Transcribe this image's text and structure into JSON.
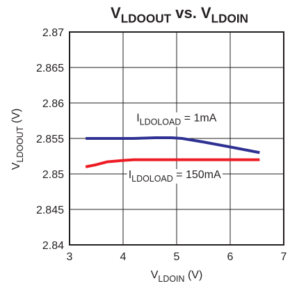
{
  "chart_data": {
    "type": "line",
    "title": [
      {
        "text": "V"
      },
      {
        "text": "LDOOUT",
        "sub": true
      },
      {
        "text": " vs. V"
      },
      {
        "text": "LDOIN",
        "sub": true
      }
    ],
    "x_label": [
      {
        "text": "V"
      },
      {
        "text": "LDOIN",
        "sub": true
      },
      {
        "text": " (V)"
      }
    ],
    "y_label": [
      {
        "text": "V"
      },
      {
        "text": "LDOOUT",
        "sub": true
      },
      {
        "text": " (V)"
      }
    ],
    "xlim": [
      3,
      7
    ],
    "xticks": [
      3,
      4,
      5,
      6,
      7
    ],
    "ylim": [
      2.84,
      2.87
    ],
    "yticks": [
      2.84,
      2.845,
      2.85,
      2.855,
      2.86,
      2.865,
      2.87
    ],
    "grid": true,
    "series": [
      {
        "color": "#2e3192",
        "x": [
          3.3,
          4.2,
          4.6,
          4.9,
          5.1,
          5.5,
          6.0,
          6.55
        ],
        "values": [
          2.855,
          2.855,
          2.8551,
          2.8551,
          2.855,
          2.8545,
          2.8538,
          2.853
        ]
      },
      {
        "color": "#ed1c24",
        "x": [
          3.3,
          3.5,
          3.7,
          4.0,
          4.2,
          4.4,
          6.55
        ],
        "values": [
          2.851,
          2.8513,
          2.8517,
          2.8519,
          2.852,
          2.852,
          2.852
        ]
      }
    ],
    "annotations": [
      {
        "x": 4.25,
        "y": 2.8574,
        "parts": [
          {
            "text": "I"
          },
          {
            "text": "LDOLOAD",
            "sub": true
          },
          {
            "text": " = 1mA"
          }
        ]
      },
      {
        "x": 4.1,
        "y": 2.8494,
        "parts": [
          {
            "text": "I"
          },
          {
            "text": "LDOLOAD",
            "sub": true
          },
          {
            "text": " = 150mA"
          }
        ]
      }
    ]
  }
}
